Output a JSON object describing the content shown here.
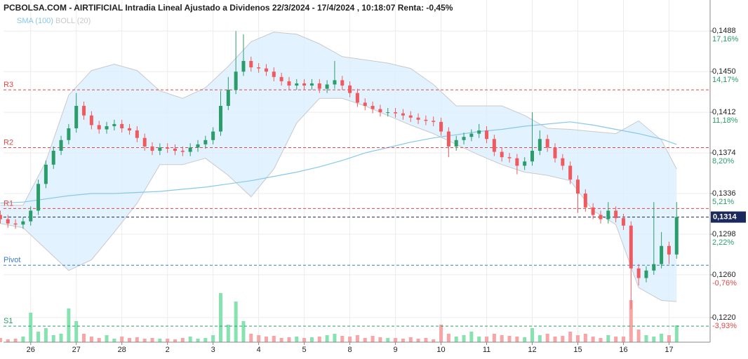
{
  "chart_data": {
    "type": "candlestick",
    "title": "PCBOLSA.COM - AIRTIFICIAL Intradia Lineal Ajustado a Dividenos 22/3/2024 - 17/4/2024 , 10:18:07 Renta: -0,45%",
    "categories": [
      null,
      null,
      null,
      null,
      "26",
      null,
      null,
      null,
      null,
      null,
      "27",
      null,
      null,
      null,
      null,
      null,
      "28",
      null,
      null,
      null,
      null,
      null,
      "2",
      null,
      null,
      null,
      null,
      null,
      "3",
      null,
      null,
      null,
      null,
      null,
      "4",
      null,
      null,
      null,
      null,
      null,
      "5",
      null,
      null,
      null,
      null,
      null,
      "8",
      null,
      null,
      null,
      null,
      null,
      "9",
      null,
      null,
      null,
      null,
      null,
      "10",
      null,
      null,
      null,
      null,
      null,
      "11",
      null,
      null,
      null,
      null,
      null,
      "12",
      null,
      null,
      null,
      null,
      null,
      "15",
      null,
      null,
      null,
      null,
      null,
      "16",
      null,
      null,
      null,
      null,
      null,
      "17",
      null
    ],
    "open": [
      0.1316,
      0.1312,
      0.1308,
      0.1307,
      0.131,
      0.132,
      0.1345,
      0.1363,
      0.1376,
      0.1386,
      0.1397,
      0.1418,
      0.1409,
      0.14,
      0.1396,
      0.1399,
      0.1401,
      0.1397,
      0.1395,
      0.1388,
      0.138,
      0.1376,
      0.1379,
      0.1378,
      0.1376,
      0.1375,
      0.1379,
      0.1382,
      0.1386,
      0.1394,
      0.1418,
      0.1433,
      0.145,
      0.146,
      0.1454,
      0.1453,
      0.145,
      0.1445,
      0.1441,
      0.1437,
      0.1439,
      0.1437,
      0.1439,
      0.1434,
      0.1438,
      0.1442,
      0.1437,
      0.143,
      0.1421,
      0.1418,
      0.1415,
      0.1412,
      0.1412,
      0.1411,
      0.1409,
      0.1407,
      0.1405,
      0.1404,
      0.1403,
      0.1394,
      0.138,
      0.1386,
      0.1389,
      0.1392,
      0.1395,
      0.1387,
      0.1375,
      0.137,
      0.1369,
      0.1362,
      0.1366,
      0.1376,
      0.1387,
      0.1379,
      0.1369,
      0.1362,
      0.1349,
      0.1336,
      0.1323,
      0.1316,
      0.1312,
      0.132,
      0.1313,
      0.1306,
      0.1266,
      0.1257,
      0.1264,
      0.127,
      0.1287,
      0.1279
    ],
    "high": [
      0.132,
      0.1316,
      0.1312,
      0.1314,
      0.1324,
      0.1349,
      0.1367,
      0.138,
      0.139,
      0.1401,
      0.143,
      0.1422,
      0.1413,
      0.1404,
      0.1403,
      0.1405,
      0.1405,
      0.1401,
      0.1399,
      0.1392,
      0.1384,
      0.1383,
      0.1383,
      0.1382,
      0.138,
      0.1383,
      0.1386,
      0.139,
      0.1398,
      0.1432,
      0.1445,
      0.1488,
      0.1485,
      0.1464,
      0.1458,
      0.1457,
      0.1454,
      0.1449,
      0.1445,
      0.1443,
      0.1443,
      0.1443,
      0.1443,
      0.1442,
      0.146,
      0.1446,
      0.1441,
      0.1434,
      0.1425,
      0.1422,
      0.1419,
      0.1416,
      0.1416,
      0.1415,
      0.1413,
      0.1411,
      0.1409,
      0.1408,
      0.1407,
      0.1398,
      0.139,
      0.1393,
      0.1396,
      0.1401,
      0.1399,
      0.1391,
      0.1379,
      0.1374,
      0.1373,
      0.137,
      0.1412,
      0.1395,
      0.1391,
      0.1383,
      0.1373,
      0.1366,
      0.1353,
      0.134,
      0.1327,
      0.132,
      0.1328,
      0.1324,
      0.1317,
      0.131,
      0.127,
      0.1268,
      0.1328,
      0.13,
      0.1291,
      0.1328
    ],
    "low": [
      0.1308,
      0.1304,
      0.1303,
      0.1303,
      0.1306,
      0.1316,
      0.1341,
      0.1359,
      0.1372,
      0.1382,
      0.1393,
      0.1405,
      0.1396,
      0.1392,
      0.1392,
      0.1395,
      0.1393,
      0.1391,
      0.1384,
      0.1376,
      0.1372,
      0.1372,
      0.1374,
      0.1372,
      0.1371,
      0.1371,
      0.1375,
      0.1378,
      0.1382,
      0.139,
      0.1414,
      0.1429,
      0.1446,
      0.145,
      0.1449,
      0.1446,
      0.1441,
      0.1437,
      0.1433,
      0.1433,
      0.1433,
      0.1433,
      0.143,
      0.143,
      0.1434,
      0.1433,
      0.1426,
      0.1417,
      0.1414,
      0.1411,
      0.1408,
      0.1408,
      0.1407,
      0.1405,
      0.1403,
      0.1401,
      0.14,
      0.1399,
      0.139,
      0.137,
      0.1376,
      0.1382,
      0.1385,
      0.1388,
      0.1383,
      0.1371,
      0.1366,
      0.1365,
      0.1354,
      0.1358,
      0.1362,
      0.1372,
      0.1375,
      0.1365,
      0.1358,
      0.1345,
      0.1318,
      0.1319,
      0.1312,
      0.1308,
      0.1308,
      0.1309,
      0.1302,
      0.1228,
      0.125,
      0.1253,
      0.126,
      0.1266,
      0.127,
      0.1275
    ],
    "close": [
      0.1312,
      0.1308,
      0.1307,
      0.131,
      0.132,
      0.1345,
      0.1363,
      0.1376,
      0.1386,
      0.1397,
      0.1418,
      0.1409,
      0.14,
      0.1396,
      0.1399,
      0.1401,
      0.1397,
      0.1395,
      0.1388,
      0.138,
      0.1376,
      0.1379,
      0.1378,
      0.1376,
      0.1375,
      0.1379,
      0.1382,
      0.1386,
      0.1394,
      0.1418,
      0.1433,
      0.145,
      0.146,
      0.1454,
      0.1453,
      0.145,
      0.1445,
      0.1441,
      0.1437,
      0.1439,
      0.1437,
      0.1439,
      0.1434,
      0.1438,
      0.1442,
      0.1437,
      0.143,
      0.1421,
      0.1418,
      0.1415,
      0.1412,
      0.1412,
      0.1411,
      0.1409,
      0.1407,
      0.1405,
      0.1404,
      0.1403,
      0.1394,
      0.138,
      0.1386,
      0.1389,
      0.1392,
      0.1395,
      0.1387,
      0.1375,
      0.137,
      0.1369,
      0.1362,
      0.1366,
      0.1376,
      0.1387,
      0.1379,
      0.1369,
      0.1362,
      0.1349,
      0.1336,
      0.1323,
      0.1316,
      0.1312,
      0.132,
      0.1313,
      0.1306,
      0.1266,
      0.1257,
      0.1264,
      0.127,
      0.1287,
      0.1279,
      0.1314
    ],
    "volume": [
      6,
      4,
      5,
      8,
      42,
      15,
      20,
      10,
      12,
      48,
      30,
      12,
      8,
      6,
      10,
      5,
      8,
      6,
      7,
      5,
      6,
      5,
      5,
      4,
      6,
      8,
      5,
      6,
      10,
      70,
      25,
      58,
      30,
      12,
      10,
      8,
      9,
      6,
      7,
      8,
      6,
      7,
      8,
      10,
      12,
      9,
      8,
      10,
      6,
      9,
      7,
      6,
      6,
      5,
      7,
      5,
      6,
      4,
      25,
      12,
      8,
      10,
      15,
      8,
      8,
      12,
      10,
      9,
      8,
      7,
      20,
      10,
      12,
      8,
      9,
      15,
      10,
      12,
      8,
      6,
      10,
      8,
      8,
      60,
      18,
      10,
      8,
      12,
      10,
      24
    ],
    "colors": {
      "up": "#2a9d6a",
      "down": "#f05a5e",
      "volume_up": "#86e3b0",
      "volume_down": "#f7a5a5"
    },
    "bollinger": {
      "name": "BOLL (20)",
      "color": "#c9c9c9",
      "fill": "#dcefff",
      "x": [
        0,
        3,
        6,
        9,
        12,
        15,
        18,
        21,
        24,
        27,
        30,
        33,
        36,
        39,
        42,
        45,
        48,
        51,
        54,
        57,
        60,
        63,
        66,
        69,
        72,
        75,
        78,
        81,
        84,
        87,
        89
      ],
      "upper": [
        0.1325,
        0.1325,
        0.1366,
        0.1428,
        0.1451,
        0.1457,
        0.1451,
        0.1432,
        0.1425,
        0.1435,
        0.1455,
        0.1478,
        0.1487,
        0.1485,
        0.1476,
        0.1464,
        0.1461,
        0.1458,
        0.1453,
        0.1438,
        0.1418,
        0.1418,
        0.1418,
        0.1409,
        0.1397,
        0.1396,
        0.1394,
        0.1392,
        0.1404,
        0.1386,
        0.1359
      ],
      "lower": [
        0.1308,
        0.1304,
        0.1284,
        0.1264,
        0.1274,
        0.13,
        0.1327,
        0.1363,
        0.1363,
        0.1369,
        0.1353,
        0.1333,
        0.1359,
        0.1402,
        0.1425,
        0.1425,
        0.1418,
        0.1409,
        0.14,
        0.1392,
        0.1382,
        0.1372,
        0.1363,
        0.1356,
        0.1353,
        0.1348,
        0.132,
        0.1307,
        0.1248,
        0.1236,
        0.1235
      ]
    },
    "sma": {
      "name": "SMA (100)",
      "color": "#86c8ec",
      "x": [
        0,
        3,
        6,
        9,
        12,
        15,
        18,
        21,
        24,
        27,
        30,
        33,
        36,
        39,
        42,
        45,
        48,
        51,
        54,
        57,
        60,
        63,
        66,
        69,
        72,
        75,
        78,
        81,
        84,
        87,
        89
      ],
      "values": [
        0.1327,
        0.1328,
        0.1331,
        0.1334,
        0.1336,
        0.1336,
        0.1337,
        0.1338,
        0.134,
        0.1342,
        0.1345,
        0.1348,
        0.1352,
        0.1356,
        0.1361,
        0.1367,
        0.1374,
        0.1379,
        0.1384,
        0.1388,
        0.1391,
        0.1394,
        0.1396,
        0.1399,
        0.1401,
        0.1403,
        0.14,
        0.1396,
        0.1392,
        0.1387,
        0.1382
      ]
    },
    "levels": [
      {
        "label": "R3",
        "value": 0.1433,
        "color": "#e04848"
      },
      {
        "label": "R2",
        "value": 0.1379,
        "color": "#e04848"
      },
      {
        "label": "R1",
        "value": 0.1322,
        "color": "#e04848"
      },
      {
        "label": "Pivot",
        "value": 0.1269,
        "color": "#3a7cc7"
      },
      {
        "label": "S1",
        "value": 0.1212,
        "color": "#2a9d6a"
      }
    ],
    "last": {
      "value": 0.1314,
      "label": "0,1314",
      "color": "#1b2a5c"
    },
    "ylim": [
      0.1197,
      0.1517
    ],
    "yticks": [
      {
        "value": 0.1488,
        "label": "0,1488"
      },
      {
        "value": 0.145,
        "label": "0,1450"
      },
      {
        "value": 0.1412,
        "label": "0,1412"
      },
      {
        "value": 0.1374,
        "label": "0,1374"
      },
      {
        "value": 0.1336,
        "label": "0,1336"
      },
      {
        "value": 0.1298,
        "label": "0,1298"
      },
      {
        "value": 0.126,
        "label": "0,1260"
      },
      {
        "value": 0.122,
        "label": "0,1220"
      }
    ],
    "ytick_changes": [
      "17,16%",
      "14,17%",
      "11,18%",
      "8,20%",
      "5,21%",
      "2,22%",
      "-0,76%",
      "-3,93%"
    ],
    "grid": true
  }
}
